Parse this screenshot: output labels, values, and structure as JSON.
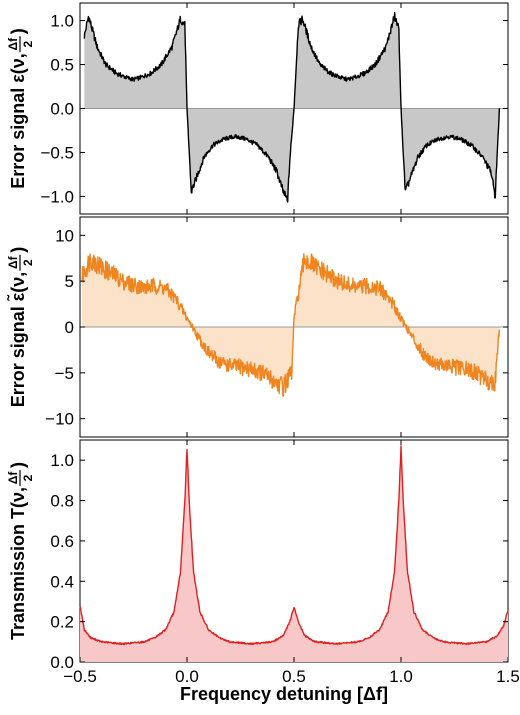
{
  "chart_data": [
    {
      "type": "area",
      "panel": "error-signal",
      "ylabel": "Error signal ε(ν, Δf/2)",
      "ylabel_parts": {
        "prefix": "Error signal ε(ν, ",
        "frac_num": "Δf",
        "frac_den": "2",
        "suffix": ")"
      },
      "xlim": [
        -0.5,
        1.5
      ],
      "ylim": [
        -1.2,
        1.2
      ],
      "yticks": [
        -1.0,
        -0.5,
        0.0,
        0.5,
        1.0
      ],
      "ytick_labels": [
        "−1.0",
        "−0.5",
        "0.0",
        "0.5",
        "1.0"
      ],
      "series": [
        {
          "color": "#000000",
          "fill": "#c8c8c8",
          "x": [
            -0.48,
            -0.46,
            -0.42,
            -0.38,
            -0.33,
            -0.28,
            -0.25,
            -0.22,
            -0.17,
            -0.12,
            -0.07,
            -0.03,
            -0.01,
            0.0,
            0.02,
            0.05,
            0.08,
            0.12,
            0.17,
            0.22,
            0.25,
            0.28,
            0.33,
            0.38,
            0.42,
            0.45,
            0.47,
            0.48,
            0.5,
            0.52,
            0.54,
            0.58,
            0.62,
            0.67,
            0.72,
            0.75,
            0.78,
            0.83,
            0.88,
            0.93,
            0.97,
            0.99,
            1.0,
            1.02,
            1.05,
            1.08,
            1.12,
            1.17,
            1.22,
            1.25,
            1.28,
            1.33,
            1.38,
            1.42,
            1.44,
            1.46
          ],
          "y": [
            0.82,
            1.05,
            0.7,
            0.5,
            0.4,
            0.35,
            0.33,
            0.35,
            0.4,
            0.5,
            0.7,
            1.02,
            0.95,
            0.0,
            -0.95,
            -0.75,
            -0.55,
            -0.42,
            -0.35,
            -0.32,
            -0.33,
            -0.35,
            -0.42,
            -0.55,
            -0.72,
            -0.95,
            -1.05,
            -0.6,
            0.0,
            0.95,
            1.02,
            0.7,
            0.5,
            0.4,
            0.35,
            0.33,
            0.35,
            0.4,
            0.5,
            0.7,
            1.05,
            0.9,
            0.0,
            -0.95,
            -0.75,
            -0.55,
            -0.42,
            -0.35,
            -0.32,
            -0.33,
            -0.35,
            -0.42,
            -0.55,
            -0.72,
            -1.0,
            0.0
          ]
        }
      ]
    },
    {
      "type": "area",
      "panel": "error-signal-tilde",
      "ylabel": "Error signal ε̃(ν, Δf/2)",
      "ylabel_parts": {
        "prefix": "Error signal ε̃(ν, ",
        "frac_num": "Δf",
        "frac_den": "2",
        "suffix": ")"
      },
      "xlim": [
        -0.5,
        1.5
      ],
      "ylim": [
        -12,
        12
      ],
      "yticks": [
        -10,
        -5,
        0,
        5,
        10
      ],
      "ytick_labels": [
        "−10",
        "−5",
        "0",
        "5",
        "10"
      ],
      "series": [
        {
          "color": "#f0841e",
          "fill": "#fbe2c8",
          "x": [
            -0.49,
            -0.45,
            -0.4,
            -0.35,
            -0.3,
            -0.25,
            -0.2,
            -0.15,
            -0.1,
            -0.05,
            0.0,
            0.05,
            0.1,
            0.15,
            0.2,
            0.25,
            0.3,
            0.35,
            0.4,
            0.45,
            0.49,
            0.5,
            0.55,
            0.6,
            0.65,
            0.7,
            0.75,
            0.8,
            0.85,
            0.9,
            0.95,
            1.0,
            1.05,
            1.1,
            1.15,
            1.2,
            1.25,
            1.3,
            1.35,
            1.4,
            1.44,
            1.46
          ],
          "y": [
            5.5,
            7.5,
            6.5,
            5.8,
            5.0,
            4.6,
            4.3,
            4.5,
            4.2,
            3.0,
            1.0,
            -1.0,
            -2.8,
            -3.8,
            -4.2,
            -4.4,
            -4.6,
            -5.0,
            -5.8,
            -6.5,
            -5.0,
            1.0,
            7.5,
            6.5,
            5.8,
            5.0,
            4.6,
            4.3,
            4.5,
            4.2,
            3.0,
            1.0,
            -1.0,
            -2.8,
            -3.8,
            -4.2,
            -4.4,
            -4.6,
            -5.0,
            -5.8,
            -6.0,
            0.0
          ]
        }
      ]
    },
    {
      "type": "area",
      "panel": "transmission",
      "ylabel": "Transmission T(ν, Δf/2)",
      "ylabel_parts": {
        "prefix": "Transmission T(ν, ",
        "frac_num": "Δf",
        "frac_den": "2",
        "suffix": ")"
      },
      "xlabel": "Frequency detuning [Δf]",
      "xlim": [
        -0.5,
        1.5
      ],
      "ylim": [
        0.0,
        1.1
      ],
      "xticks": [
        -0.5,
        0.0,
        0.5,
        1.0,
        1.5
      ],
      "xtick_labels": [
        "−0.5",
        "0.0",
        "0.5",
        "1.0",
        "1.5"
      ],
      "yticks": [
        0.0,
        0.2,
        0.4,
        0.6,
        0.8,
        1.0
      ],
      "ytick_labels": [
        "0.0",
        "0.2",
        "0.4",
        "0.6",
        "0.8",
        "1.0"
      ],
      "series": [
        {
          "color": "#e02020",
          "fill": "#f8c8c8",
          "x": [
            -0.5,
            -0.48,
            -0.45,
            -0.4,
            -0.3,
            -0.2,
            -0.15,
            -0.1,
            -0.06,
            -0.03,
            -0.01,
            0.0,
            0.01,
            0.03,
            0.06,
            0.1,
            0.15,
            0.2,
            0.3,
            0.4,
            0.45,
            0.48,
            0.5,
            0.52,
            0.55,
            0.6,
            0.7,
            0.8,
            0.85,
            0.9,
            0.94,
            0.97,
            0.99,
            1.0,
            1.01,
            1.03,
            1.06,
            1.1,
            1.15,
            1.2,
            1.3,
            1.4,
            1.45,
            1.48,
            1.5
          ],
          "y": [
            0.28,
            0.16,
            0.12,
            0.1,
            0.09,
            0.1,
            0.12,
            0.16,
            0.25,
            0.45,
            0.8,
            1.06,
            0.8,
            0.45,
            0.25,
            0.16,
            0.12,
            0.1,
            0.09,
            0.1,
            0.13,
            0.2,
            0.27,
            0.2,
            0.13,
            0.1,
            0.09,
            0.1,
            0.12,
            0.16,
            0.25,
            0.45,
            0.8,
            1.06,
            0.8,
            0.45,
            0.25,
            0.16,
            0.12,
            0.1,
            0.09,
            0.1,
            0.13,
            0.18,
            0.26
          ]
        }
      ]
    }
  ]
}
